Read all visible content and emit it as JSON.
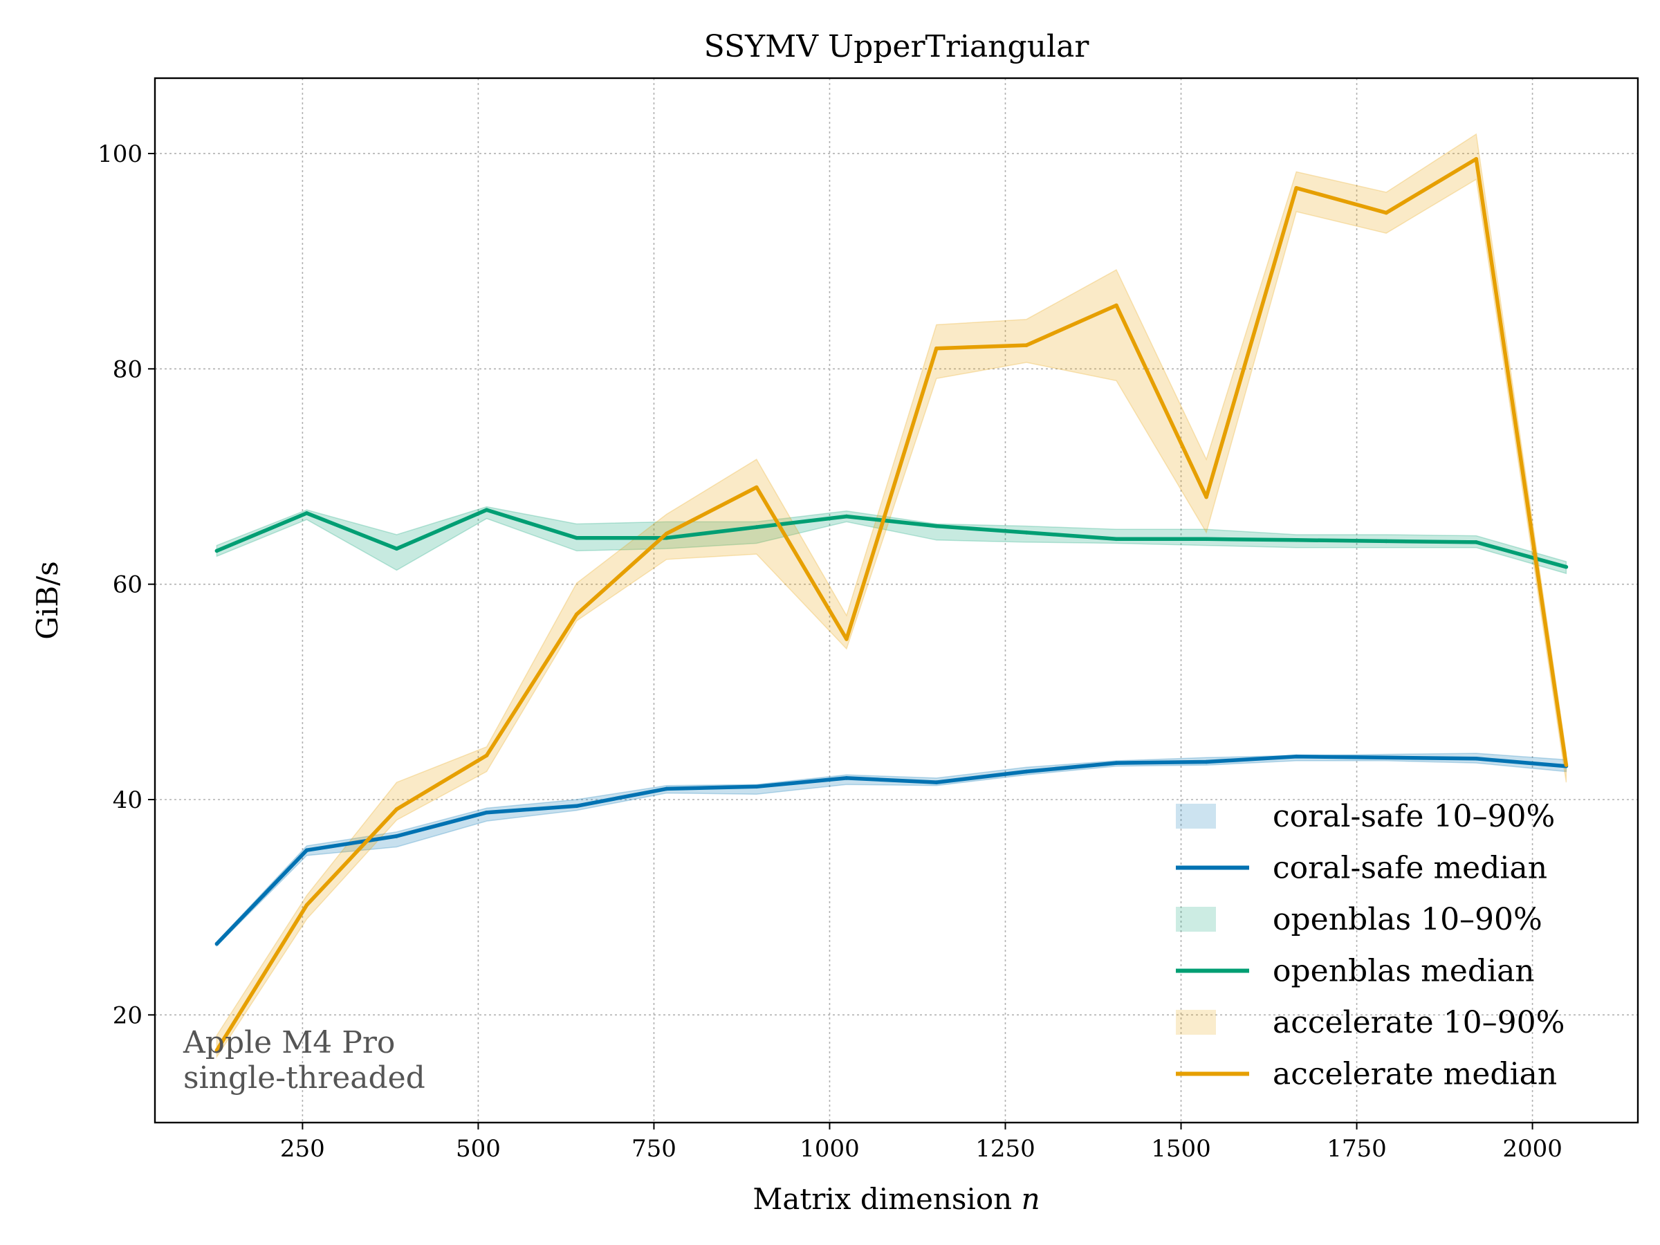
{
  "chart_data": {
    "type": "line",
    "title": "SSYMV UpperTriangular",
    "xlabel": "Matrix dimension n",
    "xlabel_text": "Matrix dimension ",
    "xlabel_var": "n",
    "ylabel": "GiB/s",
    "xlim": [
      40,
      2150
    ],
    "ylim": [
      10,
      107
    ],
    "xticks": [
      250,
      500,
      750,
      1000,
      1250,
      1500,
      1750,
      2000
    ],
    "yticks": [
      20,
      40,
      60,
      80,
      100
    ],
    "grid": true,
    "legend_position": "lower-right",
    "annotation": [
      "Apple M4 Pro",
      "single-threaded"
    ],
    "x": [
      128,
      256,
      384,
      512,
      640,
      768,
      896,
      1024,
      1152,
      1280,
      1408,
      1536,
      1664,
      1792,
      1920,
      2048
    ],
    "series": [
      {
        "name": "coral-safe",
        "color": "#0072b2",
        "band_label": "coral-safe 10–90%",
        "median_label": "coral-safe median",
        "median": [
          26.6,
          35.3,
          36.6,
          38.8,
          39.4,
          41.0,
          41.2,
          42.0,
          41.6,
          42.6,
          43.4,
          43.5,
          44.0,
          43.9,
          43.8,
          43.1
        ],
        "p10": [
          26.4,
          34.8,
          35.6,
          38.0,
          39.0,
          40.6,
          40.5,
          41.4,
          41.3,
          42.3,
          43.1,
          43.2,
          43.6,
          43.6,
          43.4,
          42.6
        ],
        "p90": [
          26.8,
          35.7,
          37.0,
          39.2,
          40.0,
          41.3,
          41.4,
          42.3,
          42.0,
          43.0,
          43.6,
          43.9,
          44.1,
          44.2,
          44.3,
          43.7
        ]
      },
      {
        "name": "openblas",
        "color": "#009e73",
        "band_label": "openblas 10–90%",
        "median_label": "openblas median",
        "median": [
          63.1,
          66.6,
          63.3,
          66.9,
          64.3,
          64.3,
          65.3,
          66.3,
          65.4,
          64.8,
          64.2,
          64.2,
          64.1,
          64.0,
          63.9,
          61.6
        ],
        "p10": [
          62.6,
          66.0,
          61.3,
          66.1,
          63.1,
          63.3,
          63.8,
          65.8,
          64.1,
          63.9,
          63.8,
          63.6,
          63.4,
          63.4,
          63.4,
          61.0
        ],
        "p90": [
          63.6,
          66.9,
          64.6,
          67.2,
          65.6,
          65.8,
          65.8,
          66.8,
          65.6,
          65.4,
          65.1,
          65.1,
          64.6,
          64.6,
          64.5,
          62.1
        ]
      },
      {
        "name": "accelerate",
        "color": "#e69f00",
        "band_label": "accelerate 10–90%",
        "median_label": "accelerate median",
        "median": [
          16.7,
          30.2,
          39.1,
          44.1,
          57.2,
          64.7,
          69.0,
          54.9,
          81.9,
          82.2,
          85.9,
          68.1,
          96.8,
          94.5,
          99.5,
          43.2
        ],
        "p10": [
          16.1,
          28.9,
          38.1,
          42.6,
          56.6,
          62.3,
          62.8,
          54.0,
          79.1,
          80.6,
          78.9,
          64.8,
          94.6,
          92.6,
          97.6,
          41.6
        ],
        "p90": [
          18.1,
          31.1,
          41.6,
          44.9,
          60.1,
          66.5,
          71.6,
          57.1,
          84.1,
          84.6,
          89.2,
          71.6,
          98.3,
          96.4,
          101.8,
          44.3
        ]
      }
    ]
  }
}
